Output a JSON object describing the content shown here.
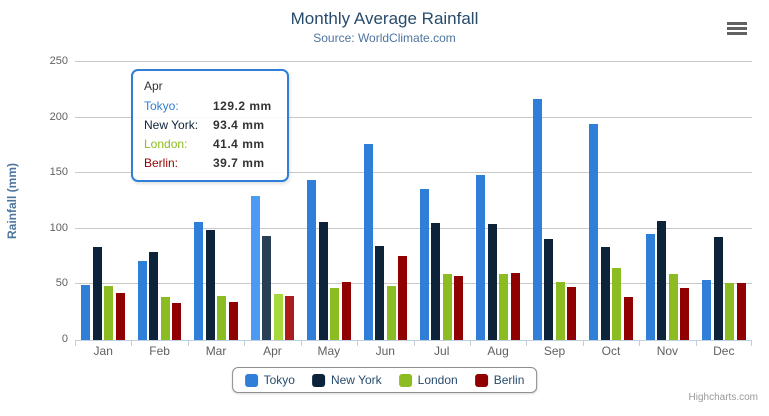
{
  "chart": {
    "title": "Monthly Average Rainfall",
    "subtitle": "Source: WorldClimate.com",
    "y_axis_title": "Rainfall (mm)",
    "credits": "Highcharts.com"
  },
  "colors": {
    "tokyo": "#2f7ed8",
    "new_york": "#0d233a",
    "london": "#8bbc21",
    "berlin": "#910000",
    "title_text": "#274b6d",
    "subtitle_text": "#4d759e",
    "axis_label": "#606060",
    "gridline": "#c9c9c9",
    "axis_line": "#c0d0e0",
    "tooltip_border": "#2f7ed8",
    "legend_text": "#274b6d",
    "credits_text": "#999999"
  },
  "chart_data": {
    "type": "bar",
    "title": "Monthly Average Rainfall",
    "subtitle": "Source: WorldClimate.com",
    "categories": [
      "Jan",
      "Feb",
      "Mar",
      "Apr",
      "May",
      "Jun",
      "Jul",
      "Aug",
      "Sep",
      "Oct",
      "Nov",
      "Dec"
    ],
    "series": [
      {
        "name": "Tokyo",
        "color": "#2f7ed8",
        "values": [
          49.9,
          71.5,
          106.4,
          129.2,
          144.0,
          176.0,
          135.6,
          148.5,
          216.4,
          194.1,
          95.6,
          54.4
        ]
      },
      {
        "name": "New York",
        "color": "#0d233a",
        "values": [
          83.6,
          78.8,
          98.5,
          93.4,
          106.0,
          84.5,
          105.0,
          104.3,
          91.2,
          83.5,
          106.6,
          92.3
        ]
      },
      {
        "name": "London",
        "color": "#8bbc21",
        "values": [
          48.9,
          38.8,
          39.3,
          41.4,
          47.0,
          48.3,
          59.0,
          59.6,
          52.4,
          65.2,
          59.3,
          51.2
        ]
      },
      {
        "name": "Berlin",
        "color": "#910000",
        "values": [
          42.4,
          33.2,
          34.5,
          39.7,
          52.6,
          75.5,
          57.4,
          60.4,
          47.6,
          39.1,
          46.8,
          51.1
        ]
      }
    ],
    "xlabel": "",
    "ylabel": "Rainfall (mm)",
    "ylim": [
      0,
      250
    ],
    "yticks": [
      0,
      50,
      100,
      150,
      200,
      250
    ],
    "grid": true,
    "legend_position": "bottom",
    "hovered_category": "Apr",
    "hovered_category_index": 3
  },
  "tooltip": {
    "header": "Apr",
    "rows": [
      {
        "label": "Tokyo:",
        "value": "129.2 mm",
        "color": "#2f7ed8"
      },
      {
        "label": "New York:",
        "value": "93.4 mm",
        "color": "#0d233a"
      },
      {
        "label": "London:",
        "value": "41.4 mm",
        "color": "#8bbc21"
      },
      {
        "label": "Berlin:",
        "value": "39.7 mm",
        "color": "#910000"
      }
    ]
  },
  "legend": {
    "items": [
      {
        "label": "Tokyo",
        "color": "#2f7ed8"
      },
      {
        "label": "New York",
        "color": "#0d233a"
      },
      {
        "label": "London",
        "color": "#8bbc21"
      },
      {
        "label": "Berlin",
        "color": "#910000"
      }
    ]
  }
}
